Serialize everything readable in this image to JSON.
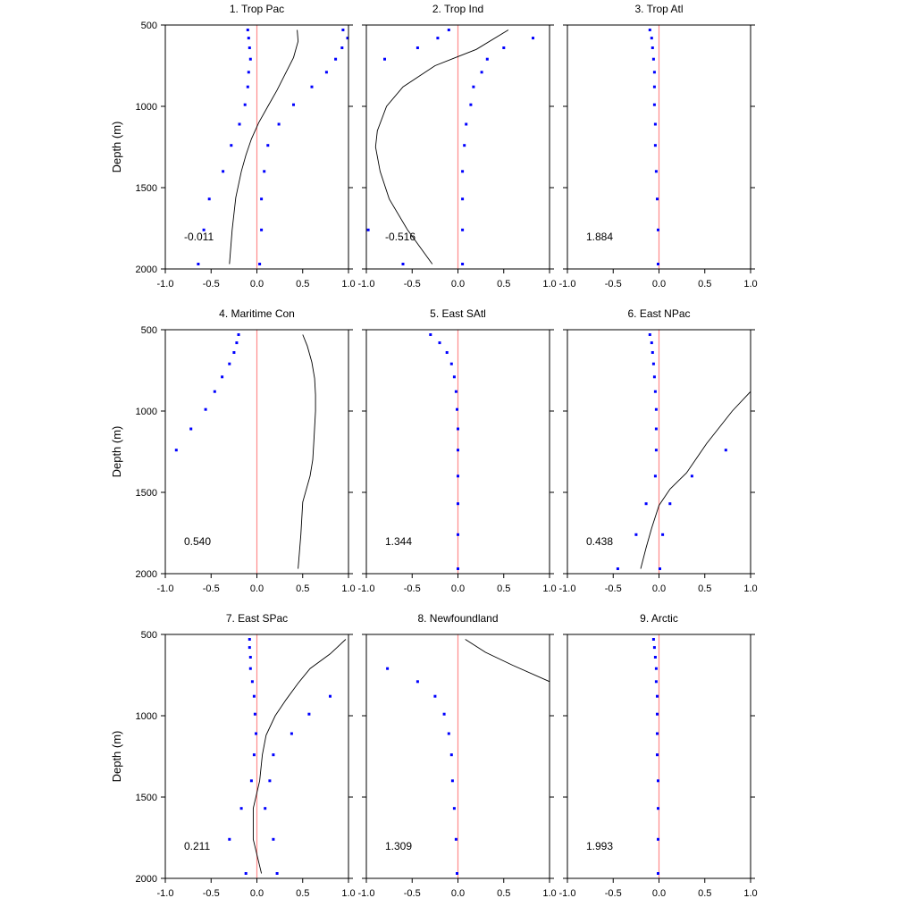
{
  "y_axis_label": "Depth (m)",
  "colors": {
    "zero_line": "#ff8a8a",
    "dots": "#0000ff",
    "curve": "#000000"
  },
  "chart_data": {
    "type": "scatter",
    "xlim": [
      -1.0,
      1.0
    ],
    "ylim": [
      500,
      2000
    ],
    "y_inverted": true,
    "x_ticks": [
      "-1.0",
      "-0.5",
      "0.0",
      "0.5",
      "1.0"
    ],
    "y_ticks": [
      "500",
      "1000",
      "1500",
      "2000"
    ],
    "depths": [
      530,
      580,
      640,
      710,
      790,
      880,
      990,
      1110,
      1240,
      1400,
      1570,
      1760,
      1970
    ],
    "panels": [
      {
        "title": "1. Trop Pac",
        "annotation": "-0.011",
        "dots_a": [
          -0.1,
          -0.09,
          -0.08,
          -0.07,
          -0.09,
          -0.1,
          -0.13,
          -0.19,
          -0.28,
          -0.37,
          -0.52,
          -0.58,
          -0.64
        ],
        "dots_b": [
          0.94,
          0.99,
          0.93,
          0.86,
          0.76,
          0.6,
          0.4,
          0.24,
          0.12,
          0.08,
          0.05,
          0.05,
          0.03
        ],
        "curve": [
          [
            0.44,
            530
          ],
          [
            0.45,
            600
          ],
          [
            0.4,
            700
          ],
          [
            0.31,
            800
          ],
          [
            0.22,
            900
          ],
          [
            0.12,
            1000
          ],
          [
            0.02,
            1100
          ],
          [
            -0.06,
            1200
          ],
          [
            -0.12,
            1300
          ],
          [
            -0.17,
            1400
          ],
          [
            -0.23,
            1560
          ],
          [
            -0.27,
            1760
          ],
          [
            -0.3,
            1970
          ]
        ]
      },
      {
        "title": "2. Trop Ind",
        "annotation": "-0.516",
        "dots_a": [
          -0.1,
          -0.22,
          -0.44,
          -0.8,
          null,
          null,
          null,
          null,
          null,
          null,
          null,
          -0.98,
          -0.6
        ],
        "dots_b": [
          null,
          0.82,
          0.5,
          0.32,
          0.26,
          0.17,
          0.14,
          0.09,
          0.07,
          0.05,
          0.05,
          0.05,
          0.05
        ],
        "curve": [
          [
            0.55,
            530
          ],
          [
            0.2,
            650
          ],
          [
            -0.25,
            750
          ],
          [
            -0.6,
            880
          ],
          [
            -0.78,
            1000
          ],
          [
            -0.88,
            1150
          ],
          [
            -0.9,
            1250
          ],
          [
            -0.85,
            1400
          ],
          [
            -0.75,
            1570
          ],
          [
            -0.55,
            1760
          ],
          [
            -0.28,
            1970
          ]
        ]
      },
      {
        "title": "3. Trop Atl",
        "annotation": "1.884",
        "dots_a": [
          -0.1,
          -0.08,
          -0.07,
          -0.06,
          -0.05,
          -0.05,
          -0.05,
          -0.04,
          -0.04,
          -0.03,
          -0.02,
          -0.01,
          -0.01
        ],
        "dots_b": [],
        "curve": []
      },
      {
        "title": "4. Maritime Con",
        "annotation": "0.540",
        "dots_a": [
          -0.2,
          -0.22,
          -0.25,
          -0.3,
          -0.38,
          -0.46,
          -0.56,
          -0.72,
          -0.88,
          null,
          null,
          null,
          null
        ],
        "dots_b": [],
        "curve": [
          [
            0.5,
            530
          ],
          [
            0.55,
            600
          ],
          [
            0.6,
            700
          ],
          [
            0.63,
            800
          ],
          [
            0.64,
            900
          ],
          [
            0.64,
            1000
          ],
          [
            0.63,
            1100
          ],
          [
            0.62,
            1200
          ],
          [
            0.61,
            1300
          ],
          [
            0.58,
            1400
          ],
          [
            0.5,
            1560
          ],
          [
            0.48,
            1760
          ],
          [
            0.45,
            1970
          ]
        ]
      },
      {
        "title": "5. East SAtl",
        "annotation": "1.344",
        "dots_a": [
          -0.3,
          -0.2,
          -0.12,
          -0.07,
          -0.04,
          -0.02,
          -0.01,
          0.0,
          0.0,
          0.0,
          0.0,
          0.0,
          0.0
        ],
        "dots_b": [],
        "curve": []
      },
      {
        "title": "6. East NPac",
        "annotation": "0.438",
        "dots_a": [
          -0.1,
          -0.08,
          -0.07,
          -0.06,
          -0.05,
          -0.04,
          -0.03,
          -0.03,
          -0.03,
          -0.04,
          -0.14,
          -0.25,
          -0.45
        ],
        "dots_b": [
          null,
          null,
          null,
          null,
          null,
          null,
          null,
          null,
          0.73,
          0.36,
          0.12,
          0.04,
          0.01
        ],
        "curve": [
          [
            1.0,
            880
          ],
          [
            0.8,
            1000
          ],
          [
            0.52,
            1200
          ],
          [
            0.3,
            1380
          ],
          [
            0.12,
            1480
          ],
          [
            0.0,
            1580
          ],
          [
            -0.08,
            1720
          ],
          [
            -0.14,
            1840
          ],
          [
            -0.2,
            1970
          ]
        ]
      },
      {
        "title": "7. East SPac",
        "annotation": "0.211",
        "dots_a": [
          -0.08,
          -0.08,
          -0.07,
          -0.07,
          -0.05,
          -0.03,
          -0.02,
          -0.01,
          -0.03,
          -0.06,
          -0.17,
          -0.3,
          -0.12
        ],
        "dots_b": [
          null,
          null,
          null,
          null,
          null,
          0.8,
          0.57,
          0.38,
          0.18,
          0.14,
          0.09,
          0.18,
          0.22
        ],
        "curve": [
          [
            0.97,
            530
          ],
          [
            0.8,
            620
          ],
          [
            0.58,
            710
          ],
          [
            0.45,
            800
          ],
          [
            0.32,
            900
          ],
          [
            0.2,
            1000
          ],
          [
            0.1,
            1120
          ],
          [
            0.06,
            1240
          ],
          [
            0.03,
            1400
          ],
          [
            -0.04,
            1570
          ],
          [
            -0.04,
            1760
          ],
          [
            0.05,
            1970
          ]
        ]
      },
      {
        "title": "8. Newfoundland",
        "annotation": "1.309",
        "dots_a": [
          null,
          null,
          null,
          -0.77,
          -0.44,
          -0.25,
          -0.15,
          -0.1,
          -0.07,
          -0.06,
          -0.04,
          -0.02,
          -0.01
        ],
        "dots_b": [],
        "curve": [
          [
            0.08,
            530
          ],
          [
            0.3,
            610
          ],
          [
            0.6,
            690
          ],
          [
            1.0,
            790
          ]
        ]
      },
      {
        "title": "9. Arctic",
        "annotation": "1.993",
        "dots_a": [
          -0.06,
          -0.05,
          -0.04,
          -0.03,
          -0.03,
          -0.02,
          -0.02,
          -0.02,
          -0.02,
          -0.01,
          -0.01,
          -0.01,
          -0.01
        ],
        "dots_b": [],
        "curve": []
      }
    ]
  }
}
